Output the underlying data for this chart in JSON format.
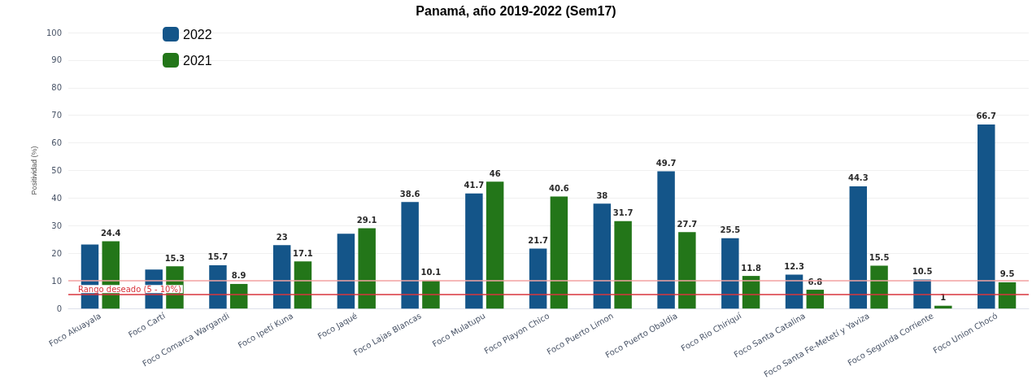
{
  "chart_data": {
    "type": "bar",
    "title": "Panamá, año 2019-2022 (Sem17)",
    "ylabel": "Positividad (%)",
    "categories": [
      "Foco Akuayala",
      "Foco Cartí",
      "Foco Comarca Wargandi",
      "Foco Ipetí Kuna",
      "Foco Jaqué",
      "Foco Lajas Blancas",
      "Foco Mulatupu",
      "Foco Playon Chico",
      "Foco Puerto Limon",
      "Foco Puerto Obaldia",
      "Foco Rio Chiriquí",
      "Foco Santa Catalina",
      "Foco Santa Fe-Metetí y Yaviza",
      "Foco Segunda Corriente",
      "Foco Union Chocó"
    ],
    "series": [
      {
        "name": "2022",
        "color": "#145589",
        "values": [
          23.2,
          14.1,
          15.7,
          23,
          27.1,
          38.6,
          41.7,
          21.7,
          38,
          49.7,
          25.5,
          12.3,
          44.3,
          10.5,
          66.7
        ],
        "value_labels": [
          null,
          null,
          "15.7",
          "23",
          null,
          "38.6",
          "41.7",
          "21.7",
          "38",
          "49.7",
          "25.5",
          "12.3",
          "44.3",
          "10.5",
          "66.7"
        ]
      },
      {
        "name": "2021",
        "color": "#237619",
        "values": [
          24.4,
          15.3,
          8.9,
          17.1,
          29.1,
          10.1,
          46,
          40.6,
          31.7,
          27.7,
          11.8,
          6.8,
          15.5,
          1,
          9.5
        ],
        "value_labels": [
          "24.4",
          "15.3",
          "8.9",
          "17.1",
          "29.1",
          "10.1",
          "46",
          "40.6",
          "31.7",
          "27.7",
          "11.8",
          "6.8",
          "15.5",
          "1",
          "9.5"
        ]
      }
    ],
    "ylim": [
      0,
      100
    ],
    "yticks": [
      0,
      10,
      20,
      30,
      40,
      50,
      60,
      70,
      80,
      90,
      100
    ],
    "grid": "y",
    "legend": "top left",
    "ref_lines": [
      {
        "axis": "y",
        "value": 10,
        "color": "#f4a3a3"
      },
      {
        "axis": "y",
        "value": 5,
        "label": "Rango deseado (5 - 10%)",
        "color": "#d9363e"
      }
    ]
  }
}
